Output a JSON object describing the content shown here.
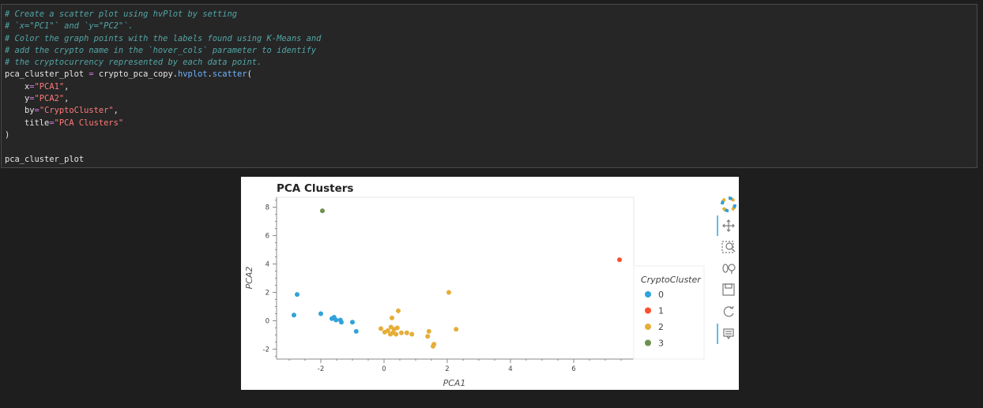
{
  "code_cell": {
    "comment_lines": [
      "# Create a scatter plot using hvPlot by setting",
      "# `x=\"PC1\"` and `y=\"PC2\"`.",
      "# Color the graph points with the labels found using K-Means and",
      "# add the crypto name in the `hover_cols` parameter to identify",
      "# the cryptocurrency represented by each data point."
    ],
    "assign_var": "pca_cluster_plot",
    "assign_op": " = ",
    "obj": "crypto_pca_copy.",
    "method": "hvplot",
    "dot2": ".",
    "method2": "scatter",
    "open_paren": "(",
    "args": [
      {
        "name": "    x",
        "eq": "=",
        "value": "\"PCA1\"",
        "tail": ","
      },
      {
        "name": "    y",
        "eq": "=",
        "value": "\"PCA2\"",
        "tail": ","
      },
      {
        "name": "    by",
        "eq": "=",
        "value": "\"CryptoCluster\"",
        "tail": ","
      },
      {
        "name": "    title",
        "eq": "=",
        "value": "\"PCA Clusters\"",
        "tail": ""
      }
    ],
    "close_paren": ")",
    "output_line": "pca_cluster_plot"
  },
  "toolbar": {
    "tools": [
      "bokeh-logo-icon",
      "pan-icon",
      "box-zoom-icon",
      "wheel-zoom-icon",
      "save-icon",
      "reset-icon",
      "hover-icon"
    ]
  },
  "chart_data": {
    "type": "scatter",
    "title": "PCA Clusters",
    "xlabel": "PCA1",
    "ylabel": "PCA2",
    "xlim": [
      -3.4,
      7.9
    ],
    "ylim": [
      -2.7,
      8.7
    ],
    "xticks": [
      -2,
      0,
      2,
      4,
      6
    ],
    "yticks": [
      -2,
      0,
      2,
      4,
      6,
      8
    ],
    "grid": false,
    "legend_title": "CryptoCluster",
    "legend_position": "right",
    "series": [
      {
        "name": "0",
        "color": "#30a2da",
        "points": [
          [
            -2.85,
            0.4
          ],
          [
            -2.75,
            1.85
          ],
          [
            -2.0,
            0.5
          ],
          [
            -1.65,
            0.15
          ],
          [
            -1.58,
            0.25
          ],
          [
            -1.52,
            0.05
          ],
          [
            -1.38,
            0.05
          ],
          [
            -1.35,
            -0.1
          ],
          [
            -1.0,
            -0.1
          ],
          [
            -0.88,
            -0.75
          ]
        ]
      },
      {
        "name": "1",
        "color": "#fc4f30",
        "points": [
          [
            7.45,
            4.3
          ]
        ]
      },
      {
        "name": "2",
        "color": "#e5ae38",
        "points": [
          [
            -0.1,
            -0.55
          ],
          [
            0.02,
            -0.8
          ],
          [
            0.12,
            -0.7
          ],
          [
            0.2,
            -0.95
          ],
          [
            0.22,
            -0.45
          ],
          [
            0.25,
            0.2
          ],
          [
            0.28,
            -0.85
          ],
          [
            0.32,
            -0.6
          ],
          [
            0.38,
            -0.95
          ],
          [
            0.42,
            -0.5
          ],
          [
            0.45,
            0.7
          ],
          [
            0.55,
            -0.85
          ],
          [
            0.72,
            -0.85
          ],
          [
            0.88,
            -0.95
          ],
          [
            1.38,
            -1.1
          ],
          [
            1.42,
            -0.75
          ],
          [
            1.55,
            -1.8
          ],
          [
            1.58,
            -1.65
          ],
          [
            2.05,
            2.0
          ],
          [
            2.28,
            -0.6
          ]
        ]
      },
      {
        "name": "3",
        "color": "#6d904f",
        "points": [
          [
            -1.95,
            7.75
          ]
        ]
      }
    ]
  }
}
